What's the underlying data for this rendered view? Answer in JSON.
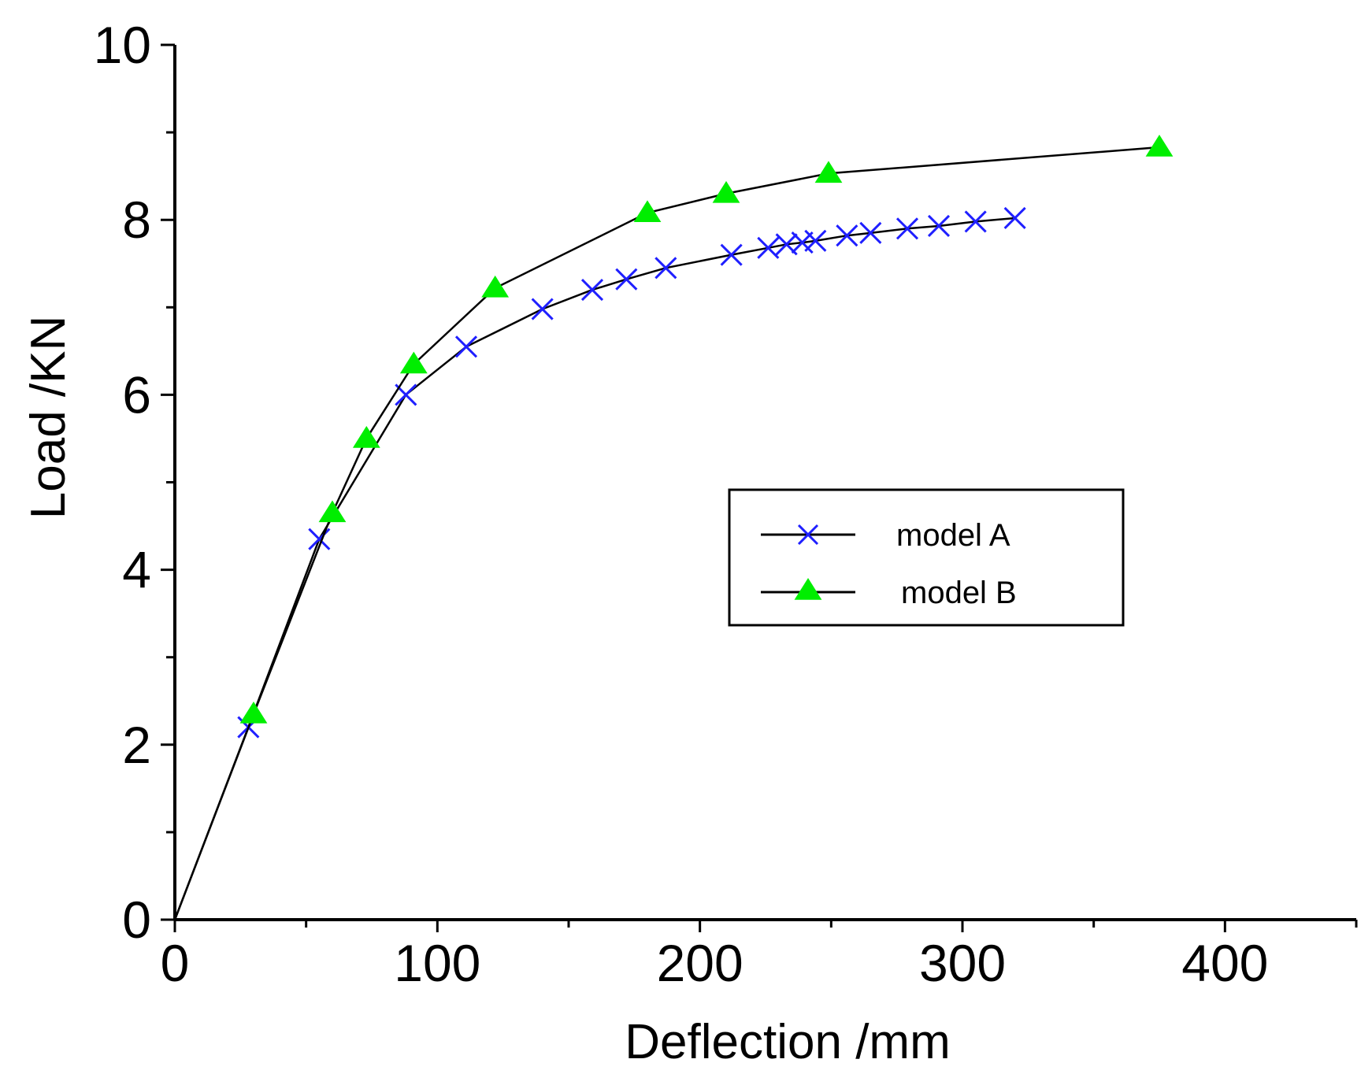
{
  "chart_data": {
    "type": "line",
    "title": "",
    "xlabel": "Deflection /mm",
    "ylabel": "Load /KN",
    "xlim": [
      0,
      450
    ],
    "ylim": [
      0,
      10
    ],
    "x_ticks": [
      0,
      100,
      200,
      300,
      400
    ],
    "y_ticks": [
      0,
      2,
      4,
      6,
      8,
      10
    ],
    "x_tick_labels": [
      "0",
      "100",
      "200",
      "300",
      "400"
    ],
    "y_tick_labels": [
      "0",
      "2",
      "4",
      "6",
      "8",
      "10"
    ],
    "grid": false,
    "legend_position": "center-right",
    "series": [
      {
        "name": "model A",
        "marker": "x",
        "line_color": "#000000",
        "marker_color": "#1f1fff",
        "x": [
          0,
          28,
          55,
          88,
          111,
          140,
          159,
          172,
          187,
          212,
          226,
          233,
          239,
          244,
          256,
          265,
          279,
          291,
          305,
          320
        ],
        "y": [
          0,
          2.2,
          4.35,
          6.0,
          6.55,
          6.98,
          7.2,
          7.32,
          7.45,
          7.6,
          7.68,
          7.72,
          7.74,
          7.76,
          7.82,
          7.85,
          7.9,
          7.93,
          7.98,
          8.02
        ]
      },
      {
        "name": "model B",
        "marker": "triangle",
        "line_color": "#000000",
        "marker_color": "#00ee00",
        "x": [
          0,
          30,
          60,
          73,
          91,
          122,
          180,
          210,
          249,
          375
        ],
        "y": [
          0,
          2.35,
          4.65,
          5.5,
          6.35,
          7.22,
          8.08,
          8.3,
          8.53,
          8.83
        ]
      }
    ]
  }
}
